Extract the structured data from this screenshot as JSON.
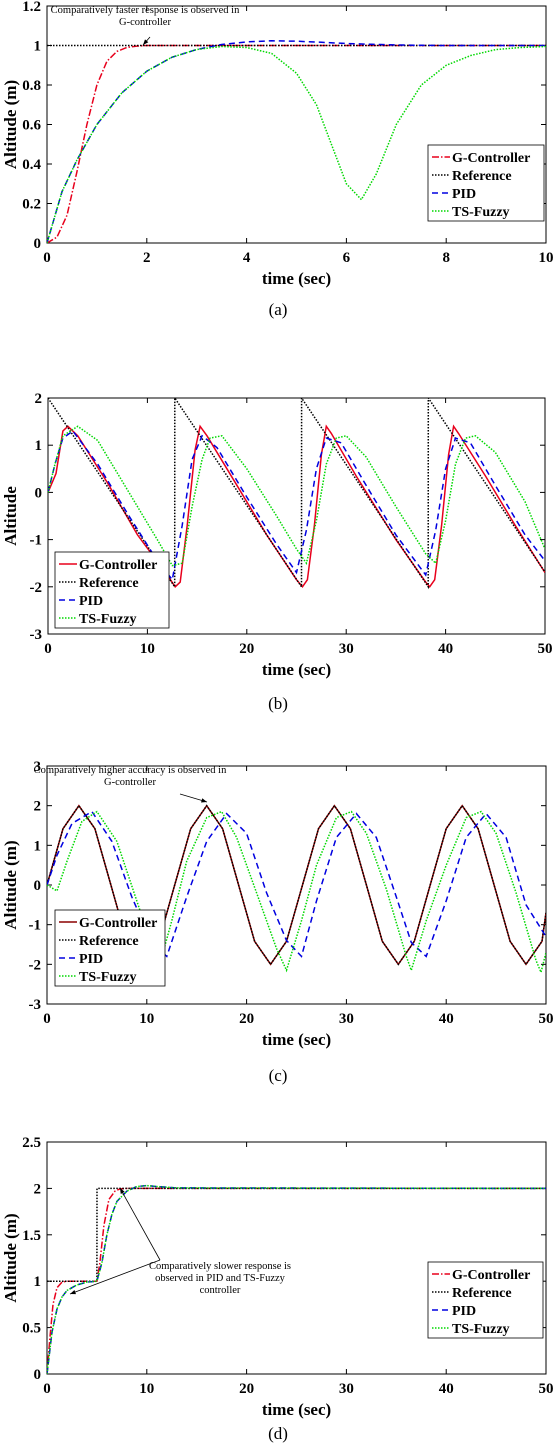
{
  "chart_data": [
    {
      "type": "line",
      "caption": "(a)",
      "xlabel": "time (sec)",
      "ylabel": "Altitude (m)",
      "xlim": [
        0,
        10
      ],
      "ylim": [
        0,
        1.2
      ],
      "xticks": [
        0,
        2,
        4,
        6,
        8,
        10
      ],
      "yticks": [
        0,
        0.2,
        0.4,
        0.6,
        0.8,
        1,
        1.2
      ],
      "ytick_labels": [
        "0",
        "0.2",
        "0.4",
        "0.6",
        "0.8",
        "1",
        "1.2"
      ],
      "legend_position": "right",
      "annotation": [
        "Comparatively faster response is observed in",
        "G-controller"
      ],
      "series": [
        {
          "name": "G-Controller",
          "color": "#e8001c",
          "dash": "7 2 1.5 2",
          "x": [
            0,
            0.2,
            0.4,
            0.6,
            0.8,
            1.0,
            1.2,
            1.4,
            1.6,
            1.8,
            2.0,
            2.5,
            3,
            10
          ],
          "y": [
            0,
            0.03,
            0.14,
            0.36,
            0.6,
            0.8,
            0.92,
            0.97,
            0.99,
            0.997,
            1,
            1,
            1,
            1
          ]
        },
        {
          "name": "Reference",
          "color": "#000000",
          "dash": "1.5 1.5",
          "x": [
            0,
            10
          ],
          "y": [
            1,
            1
          ]
        },
        {
          "name": "PID",
          "color": "#0000e0",
          "dash": "6 4",
          "x": [
            0,
            0.3,
            0.6,
            1,
            1.5,
            2,
            2.5,
            3,
            3.5,
            4,
            4.5,
            5,
            5.5,
            6,
            6.5,
            7,
            7.5,
            8,
            9,
            10
          ],
          "y": [
            0,
            0.26,
            0.42,
            0.6,
            0.76,
            0.87,
            0.94,
            0.98,
            1.005,
            1.018,
            1.024,
            1.022,
            1.016,
            1.01,
            1.006,
            1.003,
            1.001,
            1.0,
            1.0,
            1.0
          ]
        },
        {
          "name": "TS-Fuzzy",
          "color": "#00d800",
          "dash": "1.5 1.5",
          "x": [
            0,
            0.3,
            0.6,
            1,
            1.5,
            2,
            2.5,
            3,
            3.5,
            4,
            4.5,
            5,
            5.4,
            5.7,
            6,
            6.3,
            6.6,
            7,
            7.5,
            8,
            8.5,
            9,
            9.5,
            10
          ],
          "y": [
            0,
            0.26,
            0.42,
            0.6,
            0.76,
            0.87,
            0.94,
            0.98,
            0.995,
            0.99,
            0.96,
            0.86,
            0.7,
            0.5,
            0.3,
            0.22,
            0.35,
            0.6,
            0.8,
            0.9,
            0.95,
            0.98,
            0.99,
            0.995
          ]
        }
      ]
    },
    {
      "type": "line",
      "caption": "(b)",
      "xlabel": "time (sec)",
      "ylabel": "Altitude",
      "xlim": [
        0,
        50
      ],
      "ylim": [
        -3,
        2
      ],
      "xticks": [
        0,
        10,
        20,
        30,
        40,
        50
      ],
      "yticks": [
        -3,
        -2,
        -1,
        0,
        1,
        2
      ],
      "ytick_labels": [
        "-3",
        "-2",
        "-1",
        "0",
        "1",
        "2"
      ],
      "legend_position": "bottom-left",
      "series": [
        {
          "name": "G-Controller",
          "color": "#e8001c",
          "dash": "",
          "x": [
            0,
            0.8,
            1.5,
            2,
            3,
            6,
            9,
            12,
            12.8,
            13.3,
            14,
            14.8,
            15.3,
            16,
            19,
            22,
            25,
            25.6,
            26.1,
            26.8,
            27.5,
            28,
            28.5,
            31,
            35,
            38,
            38.4,
            38.9,
            39.6,
            40.3,
            40.8,
            41.3,
            44,
            47,
            50
          ],
          "y": [
            0,
            0.4,
            1.3,
            1.4,
            1.2,
            0.2,
            -0.9,
            -1.75,
            -2.0,
            -1.9,
            -0.7,
            0.9,
            1.4,
            1.2,
            0.15,
            -0.9,
            -1.85,
            -2.0,
            -1.85,
            -0.7,
            0.8,
            1.4,
            1.25,
            0.35,
            -1.0,
            -1.9,
            -2.0,
            -1.85,
            -0.7,
            0.8,
            1.4,
            1.25,
            0.35,
            -0.7,
            -1.7
          ]
        },
        {
          "name": "Reference",
          "color": "#000000",
          "dash": "1.5 1.5",
          "x": [
            0,
            12.75,
            12.76,
            25.5,
            25.51,
            38.25,
            38.26,
            50
          ],
          "y": [
            2,
            -2,
            2,
            -2,
            2,
            -2,
            2,
            -1.69
          ]
        },
        {
          "name": "PID",
          "color": "#0000e0",
          "dash": "6 4",
          "x": [
            0,
            0.7,
            1.5,
            2.5,
            5,
            8,
            11,
            12.5,
            13.5,
            14.5,
            15.5,
            17,
            20,
            23,
            25,
            26,
            27,
            28,
            29.5,
            32,
            35,
            38,
            39,
            40,
            41,
            42.5,
            45,
            48,
            50
          ],
          "y": [
            0,
            0.6,
            1.15,
            1.3,
            0.6,
            -0.45,
            -1.45,
            -1.85,
            -0.7,
            0.7,
            1.2,
            0.95,
            -0.1,
            -1.1,
            -1.7,
            -0.8,
            0.5,
            1.15,
            1.05,
            0.15,
            -0.9,
            -1.75,
            -0.8,
            0.5,
            1.15,
            1.05,
            0.15,
            -0.9,
            -1.45
          ]
        },
        {
          "name": "TS-Fuzzy",
          "color": "#00d800",
          "dash": "1.5 1.5",
          "x": [
            0,
            0.7,
            1.5,
            3,
            5,
            8,
            11,
            12.5,
            13.5,
            14.5,
            15.5,
            16.3,
            17.5,
            20,
            23,
            25,
            26,
            27,
            28,
            29,
            30,
            32,
            35,
            38,
            39,
            40,
            41,
            42,
            43,
            45,
            48,
            50
          ],
          "y": [
            0,
            0.6,
            1.2,
            1.4,
            1.1,
            0.05,
            -1.0,
            -1.55,
            -1.5,
            -0.3,
            0.7,
            1.15,
            1.2,
            0.5,
            -0.5,
            -1.2,
            -1.5,
            -0.6,
            0.6,
            1.15,
            1.2,
            0.75,
            -0.3,
            -1.3,
            -1.5,
            -0.6,
            0.6,
            1.15,
            1.2,
            0.85,
            -0.2,
            -1.2
          ]
        }
      ]
    },
    {
      "type": "line",
      "caption": "(c)",
      "xlabel": "time (sec)",
      "ylabel": "Altitude (m)",
      "xlim": [
        0,
        50
      ],
      "ylim": [
        -3,
        3
      ],
      "xticks": [
        0,
        10,
        20,
        30,
        40,
        50
      ],
      "yticks": [
        -3,
        -2,
        -1,
        0,
        1,
        2,
        3
      ],
      "ytick_labels": [
        "-3",
        "-2",
        "-1",
        "0",
        "1",
        "2",
        "3"
      ],
      "legend_position": "left",
      "annotation": [
        "Comparatively higher accuracy is observed in",
        "G-controller"
      ],
      "series": [
        {
          "name": "G-Controller",
          "color": "#8b0000",
          "dash": "",
          "x": [
            0,
            1.6,
            3.2,
            4.8,
            6.4,
            8,
            9.6,
            11.2,
            12.8,
            14.4,
            16,
            17.6,
            19.2,
            20.8,
            22.4,
            24,
            25.6,
            27.2,
            28.8,
            30.4,
            32,
            33.6,
            35.2,
            36.8,
            38.4,
            40,
            41.6,
            43.2,
            44.8,
            46.4,
            48,
            49.6,
            50
          ],
          "y": [
            0,
            1.42,
            2,
            1.42,
            0,
            -1.42,
            -2,
            -1.42,
            0,
            1.42,
            2,
            1.42,
            0,
            -1.42,
            -2,
            -1.42,
            0,
            1.42,
            2,
            1.42,
            0,
            -1.42,
            -2,
            -1.42,
            0,
            1.42,
            2,
            1.42,
            0,
            -1.42,
            -2,
            -1.42,
            -0.7
          ]
        },
        {
          "name": "Reference",
          "color": "#000000",
          "dash": "1.5 1.5",
          "x": [
            0,
            1.6,
            3.2,
            4.8,
            6.4,
            8,
            9.6,
            11.2,
            12.8,
            14.4,
            16,
            17.6,
            19.2,
            20.8,
            22.4,
            24,
            25.6,
            27.2,
            28.8,
            30.4,
            32,
            33.6,
            35.2,
            36.8,
            38.4,
            40,
            41.6,
            43.2,
            44.8,
            46.4,
            48,
            49.6,
            50
          ],
          "y": [
            0,
            1.42,
            2,
            1.42,
            0,
            -1.42,
            -2,
            -1.42,
            0,
            1.42,
            2,
            1.42,
            0,
            -1.42,
            -2,
            -1.42,
            0,
            1.42,
            2,
            1.42,
            0,
            -1.42,
            -2,
            -1.42,
            0,
            1.42,
            2,
            1.42,
            0,
            -1.42,
            -2,
            -1.42,
            -0.7
          ]
        },
        {
          "name": "PID",
          "color": "#0000e0",
          "dash": "6 4",
          "x": [
            0,
            1,
            2.5,
            4.5,
            6.5,
            8.5,
            10.5,
            12,
            14,
            16,
            18,
            20,
            22,
            24,
            25.5,
            27,
            29,
            31,
            33,
            35,
            36.5,
            38,
            40,
            42,
            44,
            46,
            48,
            50
          ],
          "y": [
            0,
            0.75,
            1.55,
            1.85,
            1.1,
            -0.3,
            -1.45,
            -1.8,
            -0.3,
            1.1,
            1.8,
            1.3,
            -0.2,
            -1.4,
            -1.8,
            -0.4,
            1.2,
            1.8,
            1.2,
            -0.3,
            -1.45,
            -1.8,
            -0.4,
            1.2,
            1.8,
            1.2,
            -0.5,
            -1.3
          ]
        },
        {
          "name": "TS-Fuzzy",
          "color": "#00d800",
          "dash": "1.5 1.5",
          "x": [
            0,
            1,
            2,
            3.5,
            5,
            7,
            9,
            11,
            11.3,
            12.5,
            14,
            16,
            17.5,
            19,
            21,
            23,
            24,
            25.5,
            27,
            29,
            30.5,
            32,
            34,
            36,
            36.5,
            38,
            40,
            42,
            43.5,
            45,
            47,
            49,
            49.5,
            50
          ],
          "y": [
            0,
            -0.15,
            0.6,
            1.6,
            1.85,
            1.1,
            -0.4,
            -1.9,
            -2.0,
            -0.9,
            0.6,
            1.7,
            1.85,
            1.2,
            -0.2,
            -1.6,
            -2.15,
            -0.9,
            0.5,
            1.7,
            1.85,
            1.3,
            -0.1,
            -1.8,
            -2.15,
            -0.9,
            0.5,
            1.7,
            1.85,
            1.3,
            -0.2,
            -1.9,
            -2.2,
            -1.7
          ]
        }
      ]
    },
    {
      "type": "line",
      "caption": "(d)",
      "xlabel": "time (sec)",
      "ylabel": "Altitude (m)",
      "xlim": [
        0,
        50
      ],
      "ylim": [
        0,
        2.5
      ],
      "xticks": [
        0,
        10,
        20,
        30,
        40,
        50
      ],
      "yticks": [
        0,
        0.5,
        1,
        1.5,
        2,
        2.5
      ],
      "ytick_labels": [
        "0",
        "0.5",
        "1",
        "1.5",
        "2",
        "2.5"
      ],
      "legend_position": "right",
      "annotation": [
        "Comparatively slower response is",
        "observed in PID and TS-Fuzzy",
        "controller"
      ],
      "series": [
        {
          "name": "G-Controller",
          "color": "#e8001c",
          "dash": "7 2 1.5 2",
          "x": [
            0,
            0.3,
            0.6,
            1,
            1.5,
            2,
            3,
            5,
            5.3,
            5.7,
            6.2,
            6.8,
            7.3,
            8,
            10,
            50
          ],
          "y": [
            0,
            0.4,
            0.75,
            0.93,
            0.99,
            1.0,
            1.0,
            1.0,
            1.2,
            1.6,
            1.88,
            1.97,
            1.995,
            2.0,
            2.0,
            2.0
          ]
        },
        {
          "name": "Reference",
          "color": "#000000",
          "dash": "1.5 1.5",
          "x": [
            0,
            5,
            5.01,
            50
          ],
          "y": [
            1,
            1,
            2,
            2
          ]
        },
        {
          "name": "PID",
          "color": "#0000e0",
          "dash": "6 4",
          "x": [
            0,
            0.5,
            1,
            1.5,
            2,
            3,
            4,
            5,
            5.5,
            6,
            6.5,
            7,
            8,
            9,
            10,
            11,
            13,
            50
          ],
          "y": [
            0,
            0.45,
            0.7,
            0.83,
            0.9,
            0.96,
            0.99,
            1.0,
            1.2,
            1.5,
            1.72,
            1.86,
            1.97,
            2.02,
            2.03,
            2.02,
            2.005,
            2.0
          ]
        },
        {
          "name": "TS-Fuzzy",
          "color": "#00d800",
          "dash": "1.5 1.5",
          "x": [
            0,
            0.5,
            1,
            1.5,
            2,
            3,
            4,
            5,
            5.5,
            6,
            6.5,
            7,
            8,
            9,
            10,
            11,
            13,
            50
          ],
          "y": [
            0,
            0.45,
            0.7,
            0.83,
            0.9,
            0.96,
            0.99,
            1.0,
            1.2,
            1.5,
            1.72,
            1.86,
            1.97,
            2.02,
            2.03,
            2.02,
            2.005,
            2.0
          ]
        }
      ]
    }
  ]
}
